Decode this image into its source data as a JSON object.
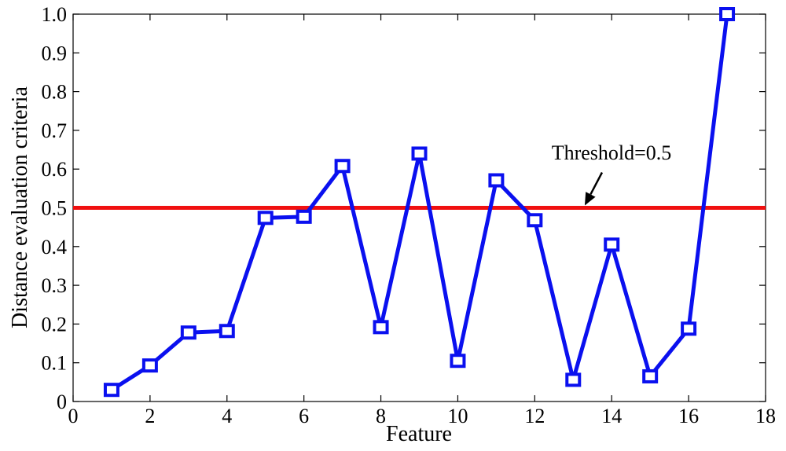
{
  "chart_data": {
    "type": "line",
    "title": "",
    "xlabel": "Feature",
    "ylabel": "Distance evaluation criteria",
    "xlim": [
      0,
      18
    ],
    "ylim": [
      0,
      1.0
    ],
    "xticks": [
      "0",
      "2",
      "4",
      "6",
      "8",
      "10",
      "12",
      "14",
      "16",
      "18"
    ],
    "yticks": [
      "0",
      "0.1",
      "0.2",
      "0.3",
      "0.4",
      "0.5",
      "0.6",
      "0.7",
      "0.8",
      "0.9",
      "1.0"
    ],
    "grid": false,
    "legend": "none",
    "series": [
      {
        "color": "#0a10ef",
        "marker": "square",
        "x": [
          1,
          2,
          3,
          4,
          5,
          6,
          7,
          8,
          9,
          10,
          11,
          12,
          13,
          14,
          15,
          16,
          17
        ],
        "values": [
          0.03,
          0.093,
          0.178,
          0.182,
          0.474,
          0.477,
          0.608,
          0.192,
          0.64,
          0.105,
          0.571,
          0.468,
          0.056,
          0.405,
          0.065,
          0.188,
          1.0
        ]
      }
    ],
    "reference_line": {
      "y": 0.5,
      "color": "#f01010"
    },
    "annotation": {
      "text": "Threshold=0.5",
      "arrow_to": [
        13.3,
        0.5
      ]
    }
  }
}
